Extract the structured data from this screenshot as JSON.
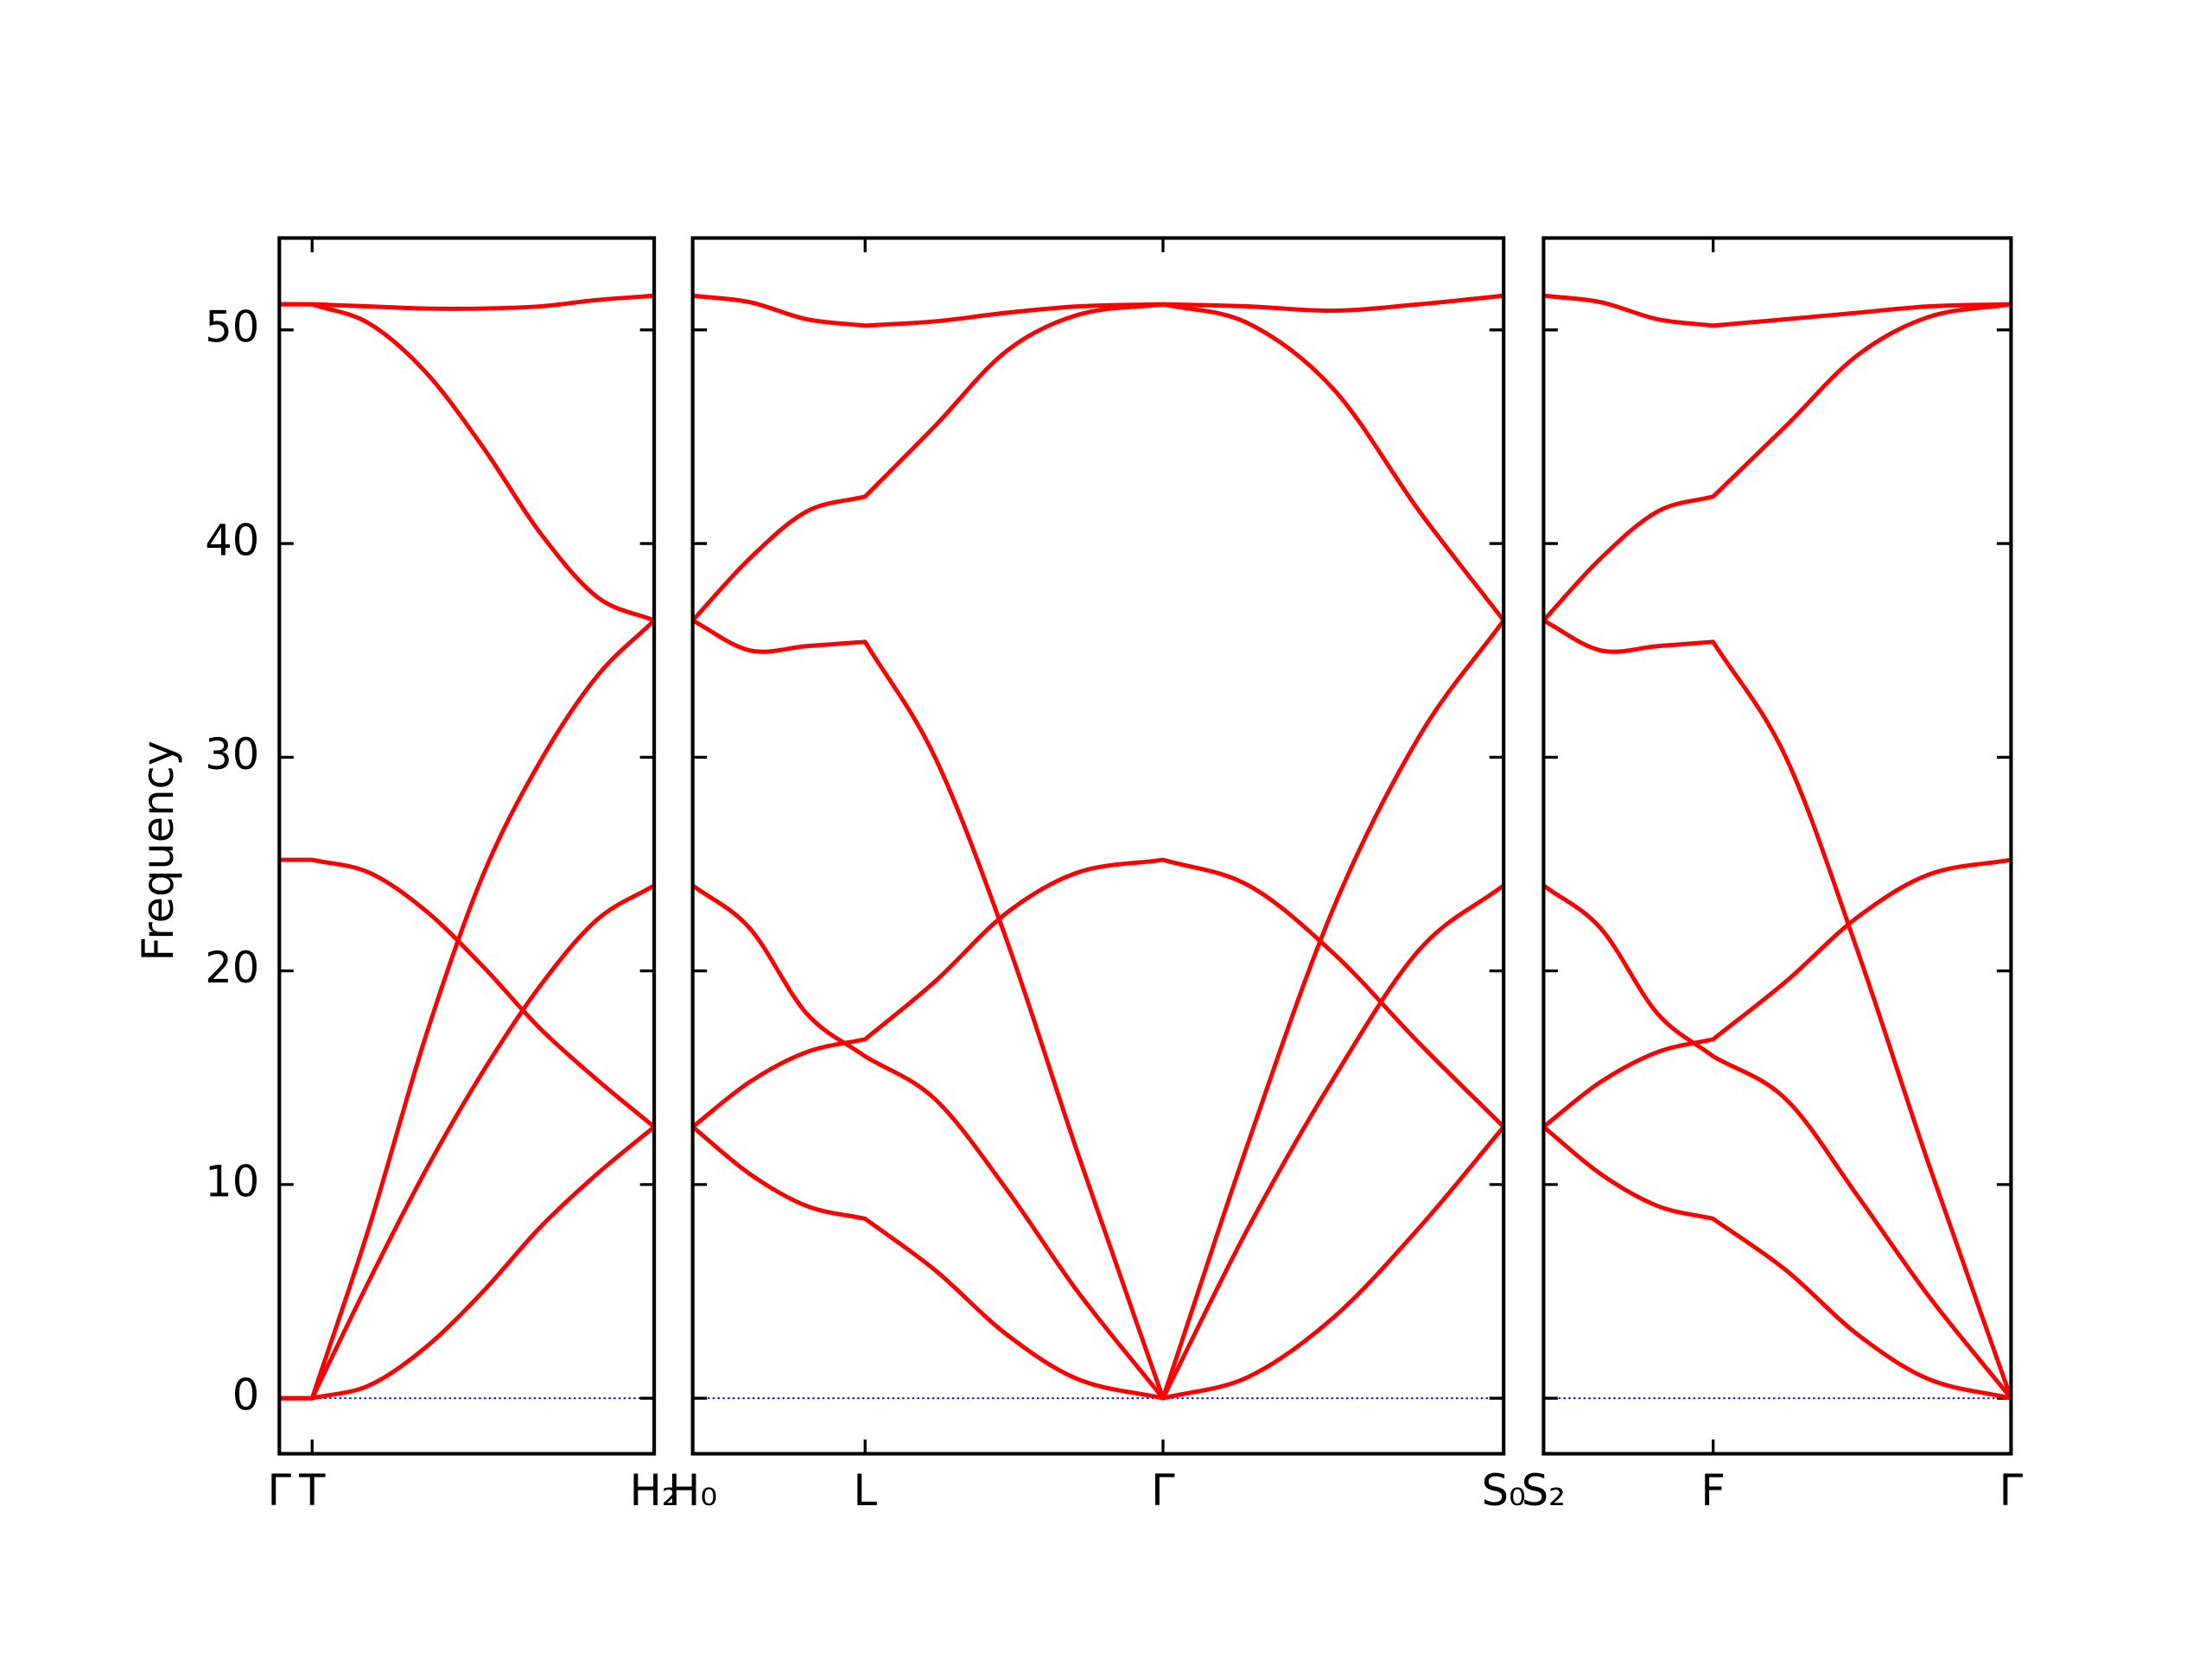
{
  "chart_data": [
    {
      "type": "line",
      "ylabel": "Frequency",
      "ytick_labels": true,
      "x": [
        0,
        23,
        63,
        103,
        143,
        183,
        223,
        263
      ],
      "xlim": [
        0,
        263
      ],
      "xticks": [
        {
          "value": 0,
          "label": "Γ"
        },
        {
          "value": 23,
          "label": "T"
        },
        {
          "value": 263,
          "label": "H₂"
        }
      ],
      "ylim": [
        -2.6,
        54.3
      ],
      "yticks": [
        0,
        10,
        20,
        30,
        40,
        50
      ],
      "hline": {
        "value": 0,
        "color": "#0000ff"
      },
      "series": [
        {
          "color": "#ff0000",
          "values": [
            0,
            0,
            0.6,
            2.4,
            5,
            8,
            10.5,
            12.7
          ]
        },
        {
          "color": "#ff0000",
          "values": [
            0,
            0,
            5.5,
            10.7,
            15.3,
            19.3,
            22.4,
            24.0
          ]
        },
        {
          "color": "#ff0000",
          "values": [
            0,
            0,
            8,
            17,
            24.5,
            29.8,
            33.8,
            36.4
          ]
        },
        {
          "color": "#ff0000",
          "values": [
            25.2,
            25.2,
            24.6,
            22.8,
            20.2,
            17.3,
            14.9,
            12.7
          ]
        },
        {
          "color": "#ff0000",
          "values": [
            51.2,
            51.2,
            50.3,
            48.0,
            44.5,
            40.5,
            37.5,
            36.4
          ]
        },
        {
          "color": "#ff0000",
          "values": [
            51.2,
            51.2,
            51.1,
            51.0,
            51.0,
            51.1,
            51.4,
            51.6
          ]
        }
      ]
    },
    {
      "type": "line",
      "ytick_labels": false,
      "x": [
        0,
        40,
        80,
        121,
        170,
        220,
        270,
        330,
        390,
        450,
        510,
        569
      ],
      "xlim": [
        0,
        569
      ],
      "xticks": [
        {
          "value": 0,
          "label": "H₀"
        },
        {
          "value": 121,
          "label": "L"
        },
        {
          "value": 330,
          "label": "Γ"
        },
        {
          "value": 569,
          "label": "S₀"
        }
      ],
      "ylim": [
        -2.6,
        54.3
      ],
      "yticks": [
        0,
        10,
        20,
        30,
        40,
        50
      ],
      "hline": {
        "value": 0,
        "color": "#0000ff"
      },
      "series": [
        {
          "color": "#ff0000",
          "values": [
            12.7,
            10.5,
            9.0,
            8.4,
            6.0,
            3.0,
            0.9,
            0,
            1.0,
            3.8,
            8.0,
            12.7
          ]
        },
        {
          "color": "#ff0000",
          "values": [
            12.7,
            14.8,
            16.2,
            16.8,
            19.5,
            22.7,
            24.6,
            25.2,
            24.0,
            20.8,
            16.6,
            12.7
          ]
        },
        {
          "color": "#ff0000",
          "values": [
            24.0,
            22.0,
            18.0,
            16.0,
            14.0,
            9.8,
            5.0,
            0,
            8.0,
            15.0,
            21.0,
            24.0
          ]
        },
        {
          "color": "#ff0000",
          "values": [
            36.4,
            35.0,
            35.2,
            35.4,
            30.0,
            21.5,
            11.5,
            0,
            12.0,
            23.0,
            31.0,
            36.4
          ]
        },
        {
          "color": "#ff0000",
          "values": [
            36.4,
            39.3,
            41.5,
            42.2,
            45.5,
            49.0,
            50.7,
            51.2,
            50.3,
            47.2,
            41.5,
            36.4
          ]
        },
        {
          "color": "#ff0000",
          "values": [
            51.6,
            51.3,
            50.5,
            50.2,
            50.4,
            50.8,
            51.1,
            51.2,
            51.1,
            50.9,
            51.2,
            51.6
          ]
        }
      ]
    },
    {
      "type": "line",
      "ytick_labels": false,
      "x": [
        0,
        40,
        80,
        119,
        170,
        220,
        270,
        328
      ],
      "xlim": [
        0,
        328
      ],
      "xticks": [
        {
          "value": 0,
          "label": "S₂"
        },
        {
          "value": 119,
          "label": "F"
        },
        {
          "value": 328,
          "label": "Γ"
        }
      ],
      "ylim": [
        -2.6,
        54.3
      ],
      "yticks": [
        0,
        10,
        20,
        30,
        40,
        50
      ],
      "hline": {
        "value": 0,
        "color": "#0000ff"
      },
      "series": [
        {
          "color": "#ff0000",
          "values": [
            12.7,
            10.5,
            9.0,
            8.4,
            6.0,
            3.0,
            0.9,
            0
          ]
        },
        {
          "color": "#ff0000",
          "values": [
            12.7,
            14.8,
            16.2,
            16.8,
            19.5,
            22.5,
            24.5,
            25.2
          ]
        },
        {
          "color": "#ff0000",
          "values": [
            24.0,
            22.0,
            18.0,
            16.0,
            14.0,
            9.5,
            4.8,
            0
          ]
        },
        {
          "color": "#ff0000",
          "values": [
            36.4,
            35.0,
            35.2,
            35.4,
            30.0,
            21.0,
            11.0,
            0
          ]
        },
        {
          "color": "#ff0000",
          "values": [
            36.4,
            39.3,
            41.5,
            42.2,
            45.5,
            48.8,
            50.6,
            51.2
          ]
        },
        {
          "color": "#ff0000",
          "values": [
            51.6,
            51.3,
            50.5,
            50.2,
            50.5,
            50.8,
            51.1,
            51.2
          ]
        }
      ]
    }
  ]
}
